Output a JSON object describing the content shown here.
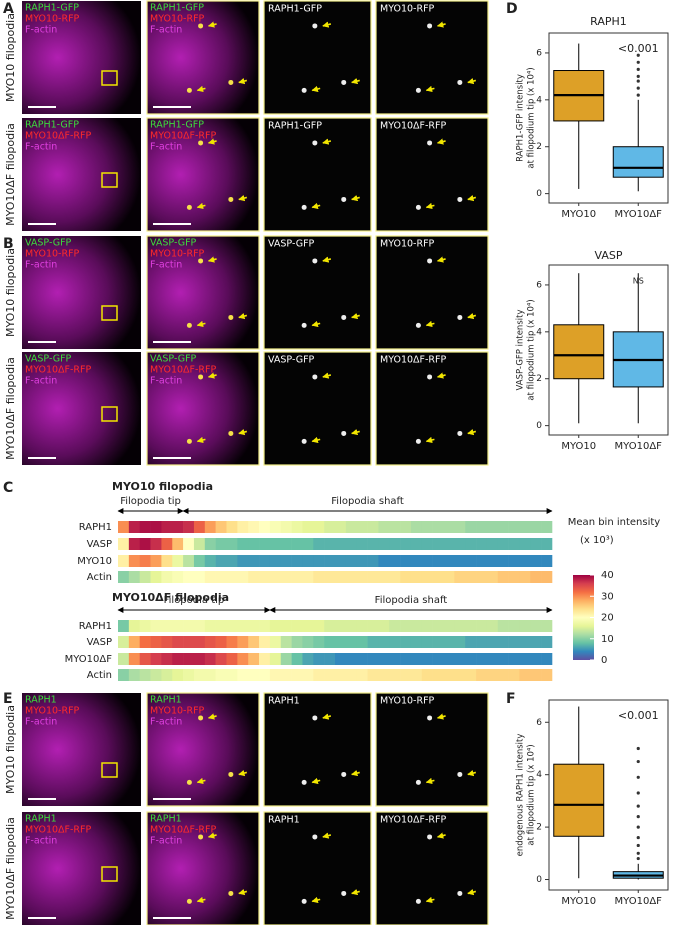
{
  "panel_labels": [
    "A",
    "B",
    "C",
    "D",
    "E",
    "F"
  ],
  "image_panels": [
    {
      "rows": [
        {
          "side": "MYO10 filopodia",
          "overview": [
            "RAPH1-GFP",
            "MYO10-RFP",
            "F-actin"
          ],
          "zoom": [
            "RAPH1-GFP",
            "MYO10-RFP",
            "F-actin"
          ],
          "channels": [
            "RAPH1-GFP",
            "MYO10-RFP"
          ]
        },
        {
          "side": "MYO10ΔF filopodia",
          "overview": [
            "RAPH1-GFP",
            "MYO10ΔF-RFP",
            "F-actin"
          ],
          "zoom": [
            "RAPH1-GFP",
            "MYO10ΔF-RFP",
            "F-actin"
          ],
          "channels": [
            "RAPH1-GFP",
            "MYO10ΔF-RFP"
          ]
        }
      ]
    },
    {
      "rows": [
        {
          "side": "MYO10 filopodia",
          "overview": [
            "VASP-GFP",
            "MYO10-RFP",
            "F-actin"
          ],
          "zoom": [
            "VASP-GFP",
            "MYO10-RFP",
            "F-actin"
          ],
          "channels": [
            "VASP-GFP",
            "MYO10-RFP"
          ]
        },
        {
          "side": "MYO10ΔF filopodia",
          "overview": [
            "VASP-GFP",
            "MYO10ΔF-RFP",
            "F-actin"
          ],
          "zoom": [
            "VASP-GFP",
            "MYO10ΔF-RFP",
            "F-actin"
          ],
          "channels": [
            "VASP-GFP",
            "MYO10ΔF-RFP"
          ]
        }
      ]
    },
    {
      "rows": [
        {
          "side": "MYO10 filopodia",
          "overview": [
            "RAPH1",
            "MYO10-RFP",
            "F-actin"
          ],
          "zoom": [
            "RAPH1",
            "MYO10-RFP",
            "F-actin"
          ],
          "channels": [
            "RAPH1",
            "MYO10-RFP"
          ]
        },
        {
          "side": "MYO10ΔF filopodia",
          "overview": [
            "RAPH1",
            "MYO10ΔF-RFP",
            "F-actin"
          ],
          "zoom": [
            "RAPH1",
            "MYO10ΔF-RFP",
            "F-actin"
          ],
          "channels": [
            "RAPH1",
            "MYO10ΔF-RFP"
          ]
        }
      ]
    }
  ],
  "chart_data": [
    {
      "type": "box",
      "title": "RAPH1",
      "ylabel": [
        "RAPH1-GFP intensity",
        "at filopodium tip (x 10⁴)"
      ],
      "annotation": "<0.001",
      "categories": [
        "MYO10",
        "MYO10ΔF"
      ],
      "ylim": [
        -0.4,
        6.85
      ],
      "yticks": [
        0,
        2,
        4,
        6
      ],
      "boxes": [
        {
          "min": 0.2,
          "q1": 3.1,
          "median": 4.2,
          "q3": 5.25,
          "max": 6.4,
          "color": "#d9960f",
          "outliers": []
        },
        {
          "min": 0.1,
          "q1": 0.7,
          "median": 1.1,
          "q3": 2.0,
          "max": 4.0,
          "color": "#4fb0e3",
          "outliers": [
            4.2,
            4.5,
            4.8,
            5.0,
            5.3,
            5.6,
            5.9
          ]
        }
      ]
    },
    {
      "type": "box",
      "title": "VASP",
      "ylabel": [
        "VASP-GFP intensity",
        "at filopodium tip (x 10⁴)"
      ],
      "annotation": "NS",
      "categories": [
        "MYO10",
        "MYO10ΔF"
      ],
      "ylim": [
        -0.4,
        6.85
      ],
      "yticks": [
        0,
        2,
        4,
        6
      ],
      "boxes": [
        {
          "min": 0.1,
          "q1": 2.0,
          "median": 3.0,
          "q3": 4.3,
          "max": 6.5,
          "color": "#d9960f",
          "outliers": []
        },
        {
          "min": 0.1,
          "q1": 1.65,
          "median": 2.8,
          "q3": 4.0,
          "max": 6.5,
          "color": "#4fb0e3",
          "outliers": []
        }
      ]
    },
    {
      "type": "heatmap",
      "title": "MYO10 filopodia",
      "annotations": [
        "Filopodia tip",
        "Filopodia shaft"
      ],
      "colorbar": {
        "title": "Mean bin intensity",
        "subtitle": "(x 10³)",
        "lim": [
          0,
          40
        ],
        "ticks": [
          0,
          10,
          20,
          30,
          40
        ]
      },
      "series": [
        {
          "name": "RAPH1",
          "values": [
            30,
            38,
            39,
            39,
            38,
            38,
            37,
            33,
            29,
            26,
            24,
            22,
            21,
            20,
            19,
            18,
            17,
            16,
            16,
            15,
            15,
            14,
            14,
            14,
            13,
            13,
            13,
            12,
            12,
            12,
            12,
            12,
            11,
            11,
            11,
            11,
            11,
            11,
            11,
            11
          ]
        },
        {
          "name": "VASP",
          "values": [
            22,
            38,
            39,
            37,
            33,
            27,
            20,
            14,
            10,
            9,
            9,
            8,
            8,
            8,
            8,
            8,
            8,
            8,
            7,
            7,
            7,
            7,
            7,
            7,
            7,
            7,
            7,
            7,
            7,
            7,
            7,
            7,
            7,
            7,
            7,
            7,
            7,
            7,
            7,
            7
          ]
        },
        {
          "name": "MYO10",
          "values": [
            22,
            30,
            31,
            29,
            24,
            17,
            13,
            9,
            7,
            6,
            6,
            5,
            5,
            5,
            5,
            5,
            5,
            5,
            5,
            5,
            5,
            5,
            5,
            5,
            4,
            4,
            4,
            4,
            4,
            4,
            4,
            4,
            4,
            4,
            4,
            4,
            4,
            4,
            4,
            4
          ]
        },
        {
          "name": "Actin",
          "values": [
            10,
            12,
            14,
            16,
            18,
            19,
            20,
            20,
            21,
            21,
            21,
            21,
            22,
            22,
            22,
            22,
            22,
            22,
            23,
            23,
            23,
            23,
            23,
            23,
            23,
            23,
            24,
            24,
            24,
            24,
            24,
            25,
            25,
            25,
            25,
            26,
            26,
            26,
            27,
            27
          ]
        }
      ]
    },
    {
      "type": "heatmap",
      "title": "MYO10ΔF filopodia",
      "annotations": [
        "Filopodia tip",
        "Filopodia shaft"
      ],
      "series": [
        {
          "name": "RAPH1",
          "values": [
            9,
            16,
            17,
            18,
            18,
            18,
            18,
            18,
            17,
            17,
            17,
            17,
            17,
            17,
            16,
            16,
            16,
            16,
            16,
            15,
            15,
            15,
            15,
            15,
            15,
            14,
            14,
            14,
            14,
            14,
            14,
            14,
            14,
            14,
            14,
            13,
            13,
            13,
            13,
            13
          ]
        },
        {
          "name": "VASP",
          "values": [
            15,
            28,
            32,
            33,
            34,
            35,
            35,
            35,
            34,
            33,
            31,
            29,
            26,
            22,
            17,
            13,
            11,
            10,
            9,
            8,
            8,
            8,
            8,
            7,
            7,
            7,
            7,
            7,
            7,
            7,
            7,
            7,
            6,
            6,
            6,
            6,
            6,
            6,
            6,
            6
          ]
        },
        {
          "name": "MYO10ΔF",
          "values": [
            14,
            30,
            34,
            36,
            37,
            38,
            38,
            38,
            37,
            35,
            33,
            30,
            27,
            22,
            16,
            11,
            8,
            6,
            5,
            5,
            4,
            4,
            4,
            4,
            4,
            4,
            4,
            4,
            4,
            4,
            4,
            4,
            4,
            4,
            4,
            4,
            4,
            4,
            4,
            4
          ]
        },
        {
          "name": "Actin",
          "values": [
            10,
            12,
            13,
            14,
            15,
            16,
            17,
            18,
            18,
            19,
            19,
            20,
            20,
            20,
            21,
            21,
            21,
            21,
            22,
            22,
            22,
            22,
            22,
            23,
            23,
            23,
            23,
            23,
            24,
            24,
            24,
            24,
            24,
            25,
            25,
            25,
            25,
            26,
            26,
            26
          ]
        }
      ]
    },
    {
      "type": "box",
      "ylabel": [
        "endogenous RAPH1 intensity",
        "at filopodium tip (x 10⁴)"
      ],
      "annotation": "<0.001",
      "categories": [
        "MYO10",
        "MYO10ΔF"
      ],
      "ylim": [
        -0.4,
        6.85
      ],
      "yticks": [
        0,
        2,
        4,
        6
      ],
      "boxes": [
        {
          "min": 0.05,
          "q1": 1.65,
          "median": 2.85,
          "q3": 4.4,
          "max": 6.6,
          "color": "#d9960f",
          "outliers": []
        },
        {
          "min": 0,
          "q1": 0.05,
          "median": 0.15,
          "q3": 0.3,
          "max": 0.6,
          "color": "#4fb0e3",
          "outliers": [
            0.8,
            1.0,
            1.3,
            1.6,
            2.0,
            2.4,
            2.8,
            3.3,
            3.9,
            4.5,
            5.0
          ]
        }
      ]
    }
  ]
}
